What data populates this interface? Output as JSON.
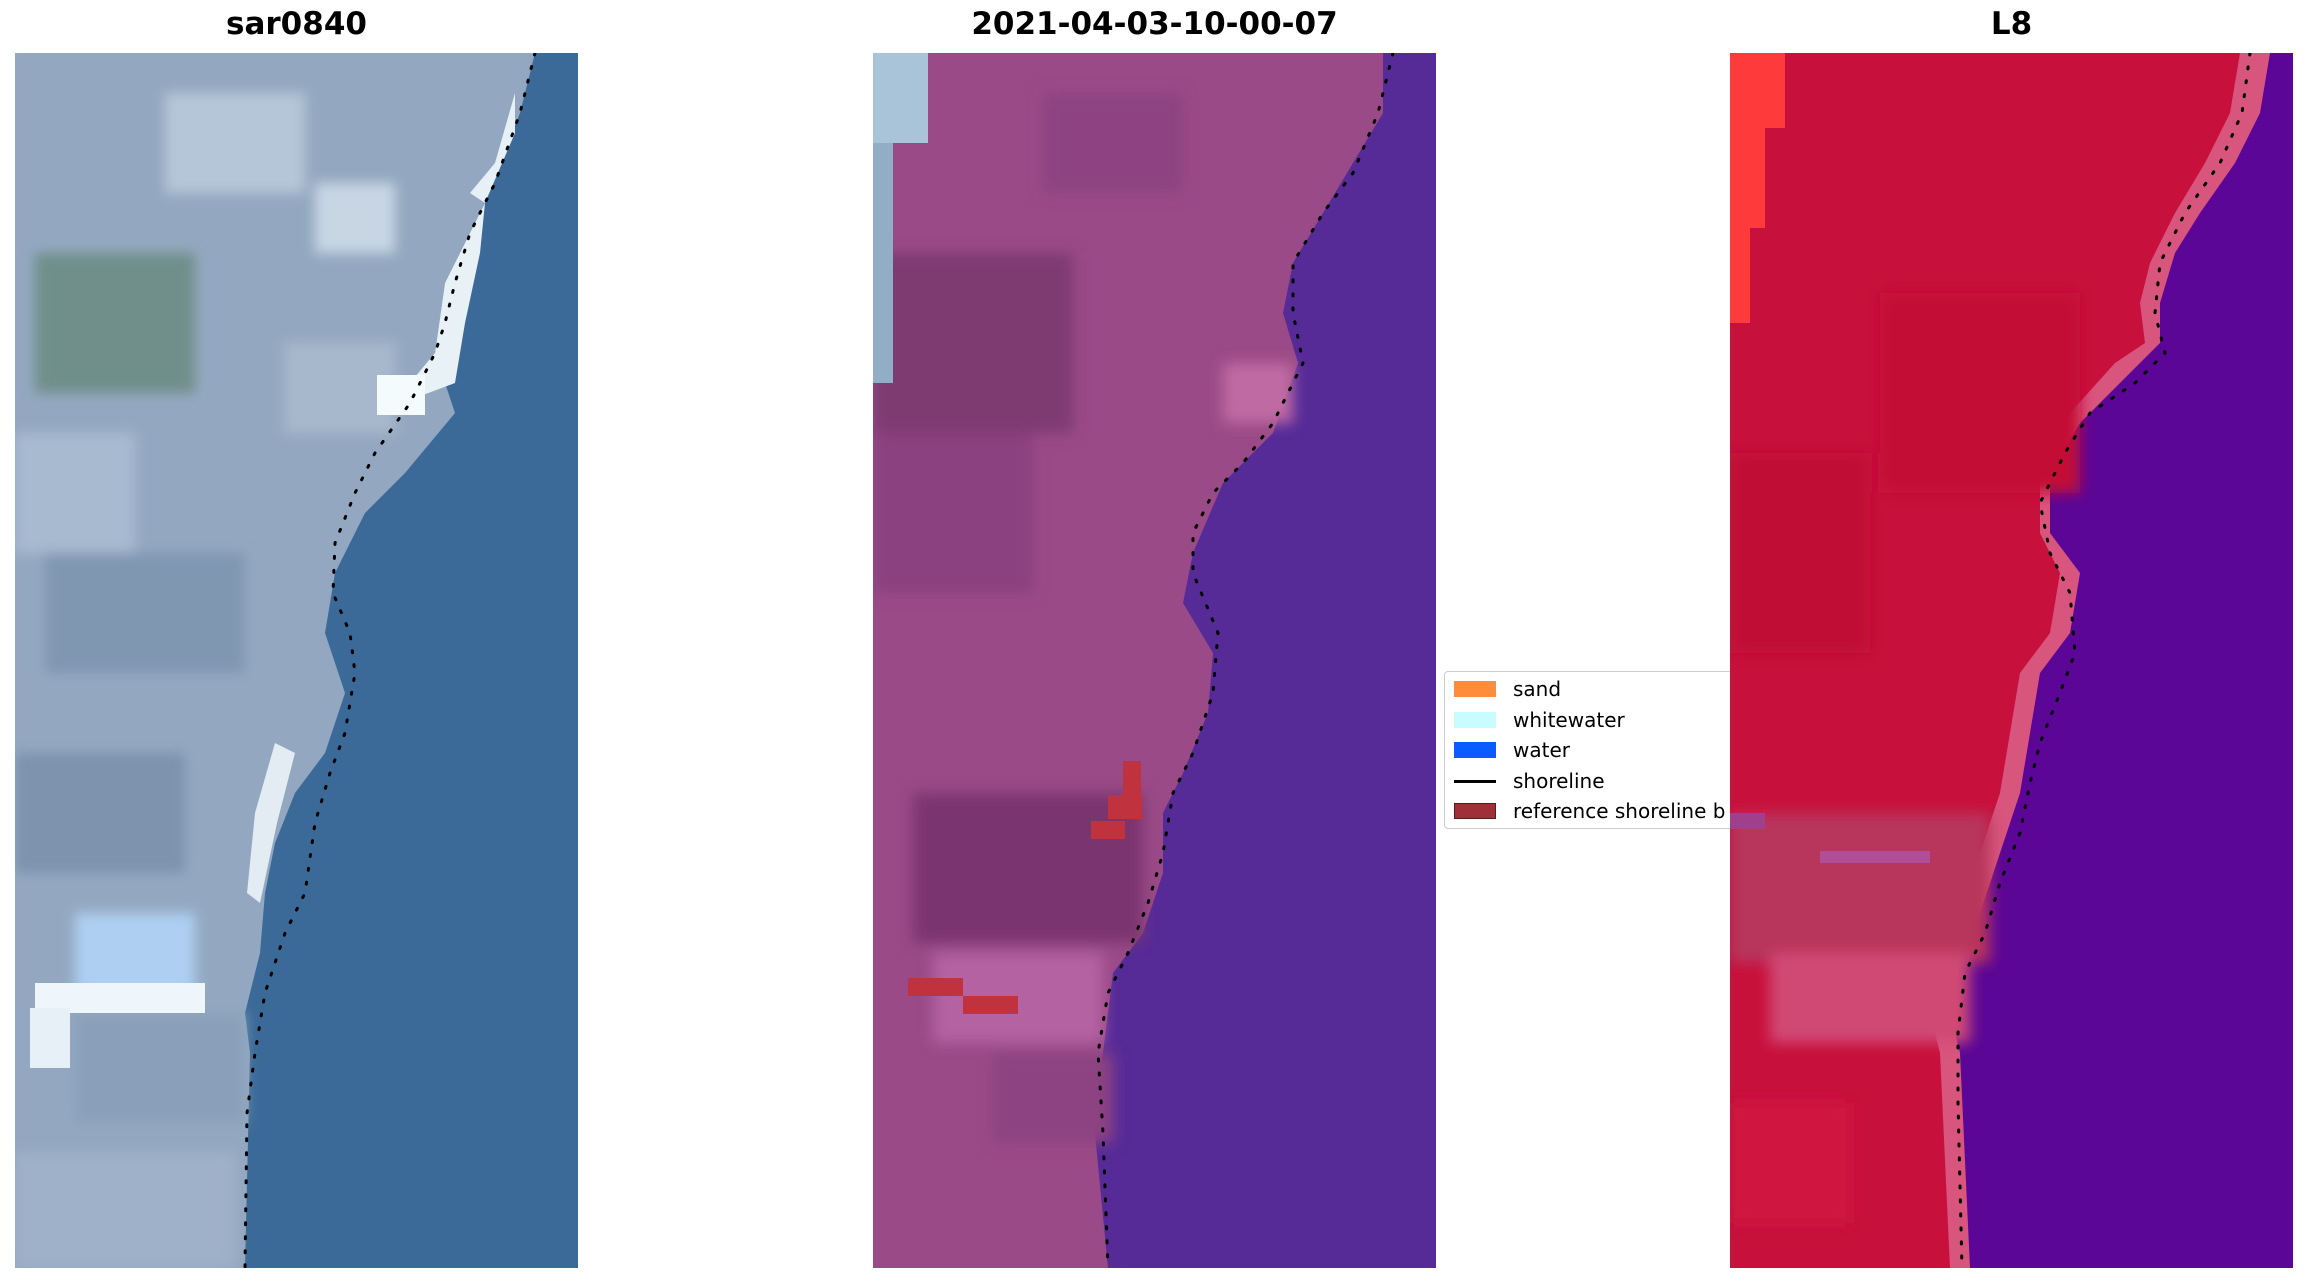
{
  "panels": [
    {
      "title": "sar0840"
    },
    {
      "title": "2021-04-03-10-00-07"
    },
    {
      "title": "L8"
    }
  ],
  "legend": {
    "items": [
      {
        "label": "sand",
        "color": "#ff8c3a",
        "kind": "patch"
      },
      {
        "label": "whitewater",
        "color": "#c8fcff",
        "kind": "patch"
      },
      {
        "label": "water",
        "color": "#0a5cff",
        "kind": "patch"
      },
      {
        "label": "shoreline",
        "color": "#000000",
        "kind": "line"
      },
      {
        "label": "reference shoreline b",
        "color": "#a03038",
        "kind": "patch"
      }
    ]
  },
  "colors": {
    "rgb_land": "#8fa6bf",
    "rgb_water": "#3a6896",
    "rgb_surf": "#eef6fb",
    "false_color_land": "#9c4a86",
    "false_color_water": "#552997",
    "ndvi_land": "#c8103c",
    "ndvi_water": "#5a0696",
    "reference_band": "#c0323e"
  }
}
